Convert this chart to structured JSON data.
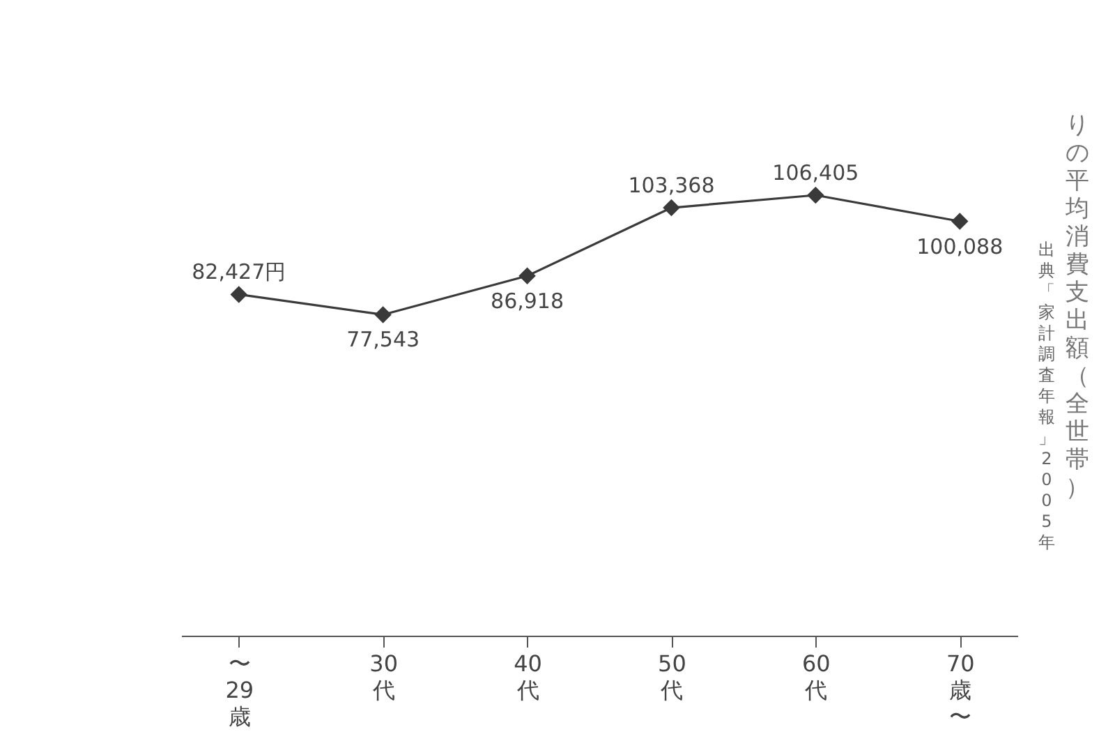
{
  "chart_data": {
    "type": "line",
    "title": "りの平均消費支出額（全世帯）",
    "annotations": [
      "出典「家計調査年報」2005年"
    ],
    "categories": [
      "〜29歳",
      "30代",
      "40代",
      "50代",
      "60代",
      "70歳〜"
    ],
    "series": [
      {
        "color": "#3a3a3a",
        "values": [
          82427,
          77543,
          86918,
          103368,
          106405,
          100088
        ],
        "value_labels": [
          "82,427円",
          "77,543",
          "86,918",
          "103,368",
          "106,405",
          "100,088"
        ]
      }
    ],
    "tick_labels": "x",
    "marker": "diamond",
    "line_style": "solid"
  }
}
